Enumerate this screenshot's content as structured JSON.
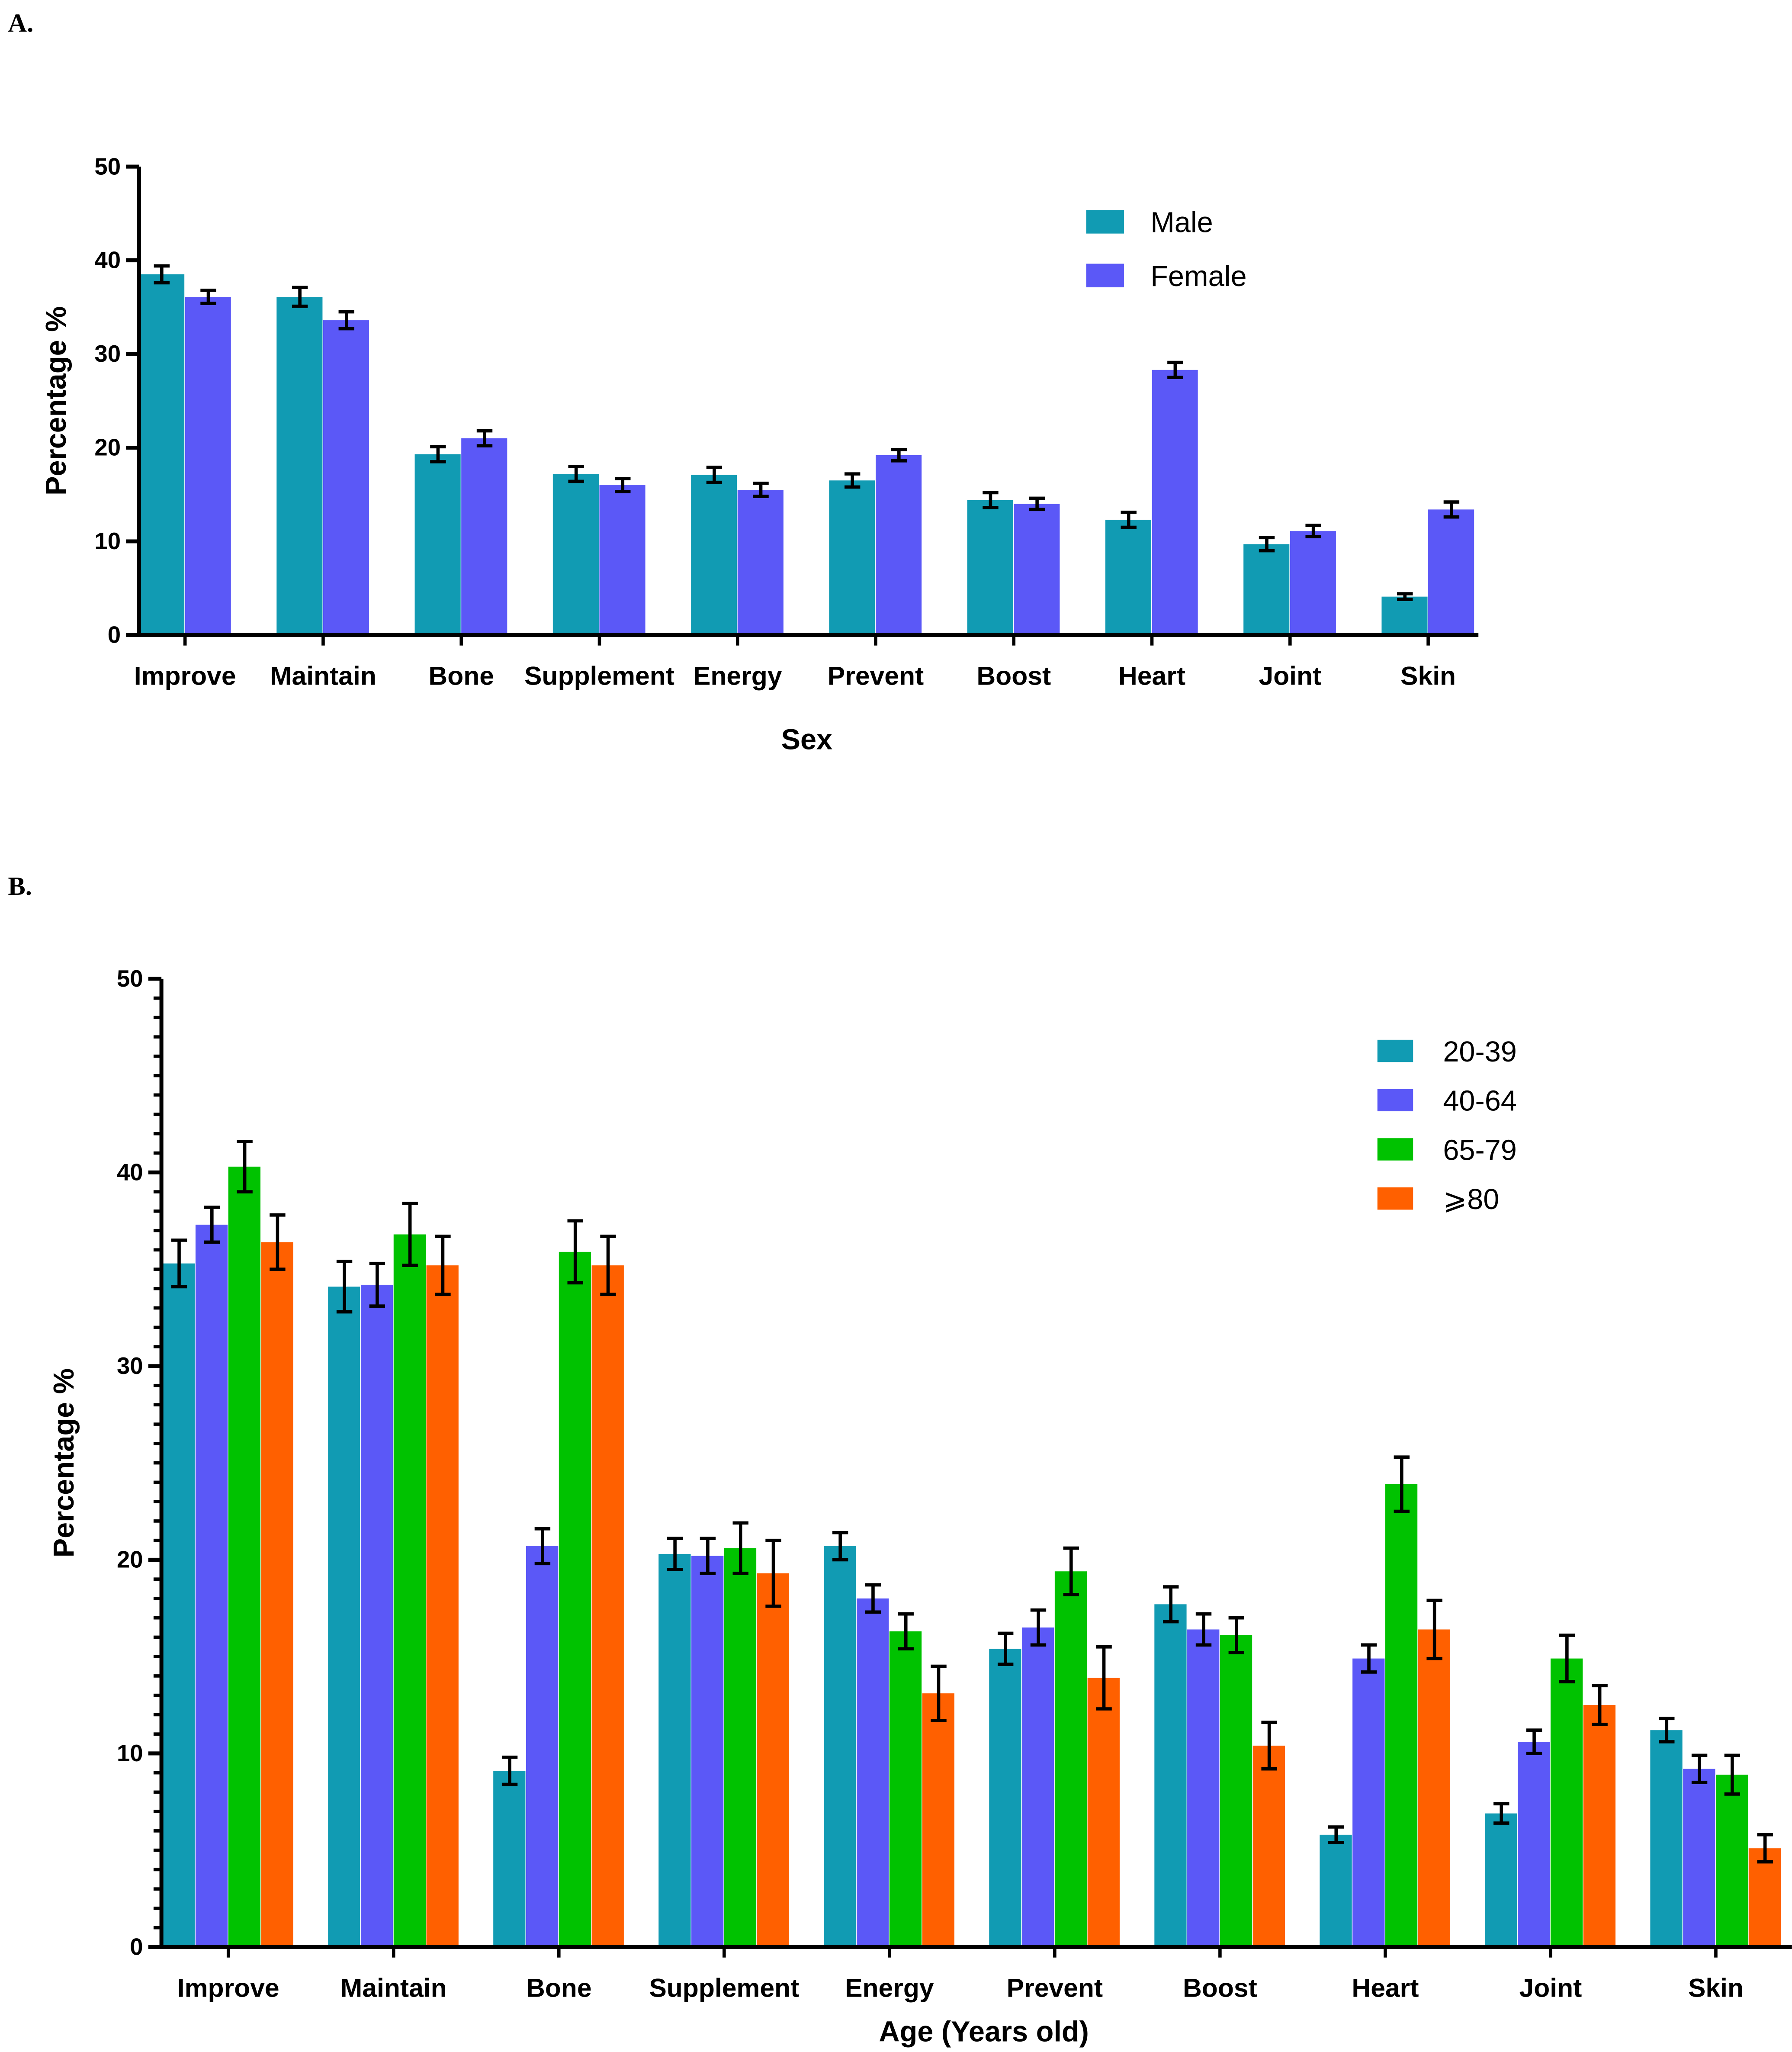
{
  "colors": {
    "teal": "#119bb3",
    "purple": "#5b58f7",
    "green": "#00c200",
    "orange": "#ff6000"
  },
  "chart_data": [
    {
      "type": "bar",
      "panel_label": "A.",
      "xlabel": "Sex",
      "ylabel": "Percentage %",
      "ylim": [
        0,
        50
      ],
      "yticks": [
        0,
        10,
        20,
        30,
        40,
        50
      ],
      "legend_position": "top-right",
      "categories": [
        "Improve",
        "Maintain",
        "Bone",
        "Supplement",
        "Energy",
        "Prevent",
        "Boost",
        "Heart",
        "Joint",
        "Skin"
      ],
      "series": [
        {
          "name": "Male",
          "color": "#119bb3",
          "values": [
            38.5,
            36.1,
            19.3,
            17.2,
            17.1,
            16.5,
            14.4,
            12.3,
            9.7,
            4.1
          ],
          "error": [
            0.9,
            1.0,
            0.8,
            0.8,
            0.8,
            0.7,
            0.8,
            0.8,
            0.7,
            0.3
          ]
        },
        {
          "name": "Female",
          "color": "#5b58f7",
          "values": [
            36.1,
            33.6,
            21.0,
            16.0,
            15.5,
            19.2,
            14.0,
            28.3,
            11.1,
            13.4
          ],
          "error": [
            0.7,
            0.9,
            0.8,
            0.7,
            0.7,
            0.6,
            0.6,
            0.8,
            0.6,
            0.8
          ]
        }
      ]
    },
    {
      "type": "bar",
      "panel_label": "B.",
      "xlabel": "Age (Years old)",
      "ylabel": "Percentage %",
      "ylim": [
        0,
        50
      ],
      "yticks": [
        0,
        10,
        20,
        30,
        40,
        50
      ],
      "legend_position": "top-right",
      "categories": [
        "Improve",
        "Maintain",
        "Bone",
        "Supplement",
        "Energy",
        "Prevent",
        "Boost",
        "Heart",
        "Joint",
        "Skin"
      ],
      "series": [
        {
          "name": "20-39",
          "color": "#119bb3",
          "values": [
            35.3,
            34.1,
            9.1,
            20.3,
            20.7,
            15.4,
            17.7,
            5.8,
            6.9,
            11.2
          ],
          "error": [
            1.2,
            1.3,
            0.7,
            0.8,
            0.7,
            0.8,
            0.9,
            0.4,
            0.5,
            0.6
          ]
        },
        {
          "name": "40-64",
          "color": "#5b58f7",
          "values": [
            37.3,
            34.2,
            20.7,
            20.2,
            18.0,
            16.5,
            16.4,
            14.9,
            10.6,
            9.2
          ],
          "error": [
            0.9,
            1.1,
            0.9,
            0.9,
            0.7,
            0.9,
            0.8,
            0.7,
            0.6,
            0.7
          ]
        },
        {
          "name": "65-79",
          "color": "#00c200",
          "values": [
            40.3,
            36.8,
            35.9,
            20.6,
            16.3,
            19.4,
            16.1,
            23.9,
            14.9,
            8.9
          ],
          "error": [
            1.3,
            1.6,
            1.6,
            1.3,
            0.9,
            1.2,
            0.9,
            1.4,
            1.2,
            1.0
          ]
        },
        {
          "name": "⩾80",
          "color": "#ff6000",
          "values": [
            36.4,
            35.2,
            35.2,
            19.3,
            13.1,
            13.9,
            10.4,
            16.4,
            12.5,
            5.1
          ],
          "error": [
            1.4,
            1.5,
            1.5,
            1.7,
            1.4,
            1.6,
            1.2,
            1.5,
            1.0,
            0.7
          ]
        }
      ]
    }
  ]
}
